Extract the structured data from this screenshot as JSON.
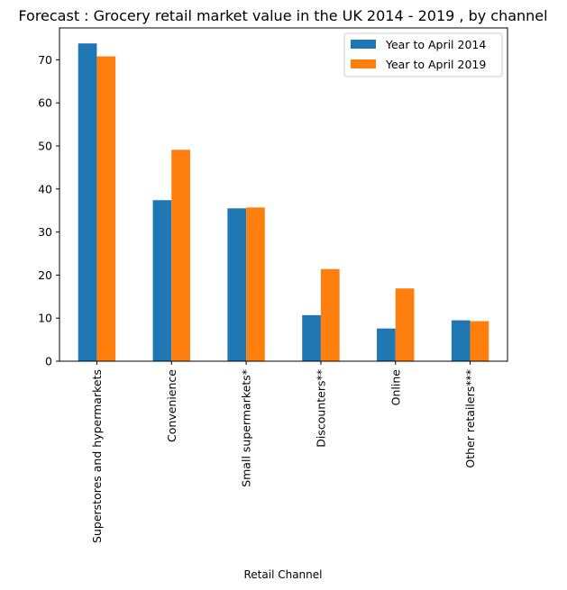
{
  "chart_data": {
    "type": "bar",
    "title": "Forecast : Grocery retail market value in the UK 2014 - 2019 , by channel",
    "xlabel": "Retail Channel",
    "ylabel": "",
    "ylim": [
      0,
      77.4
    ],
    "yticks": [
      0,
      10,
      20,
      30,
      40,
      50,
      60,
      70
    ],
    "grid": false,
    "legend_position": "top-right",
    "categories": [
      "Superstores and hypermarkets",
      "Convenience",
      "Small supermarkets*",
      "Discounters**",
      "Online",
      "Other retailers***"
    ],
    "series": [
      {
        "name": "Year to April 2014",
        "color": "#1f77b4",
        "values": [
          73.8,
          37.4,
          35.5,
          10.7,
          7.6,
          9.5
        ]
      },
      {
        "name": "Year to April 2019",
        "color": "#ff7f0e",
        "values": [
          70.8,
          49.1,
          35.7,
          21.4,
          16.9,
          9.3
        ]
      }
    ]
  }
}
